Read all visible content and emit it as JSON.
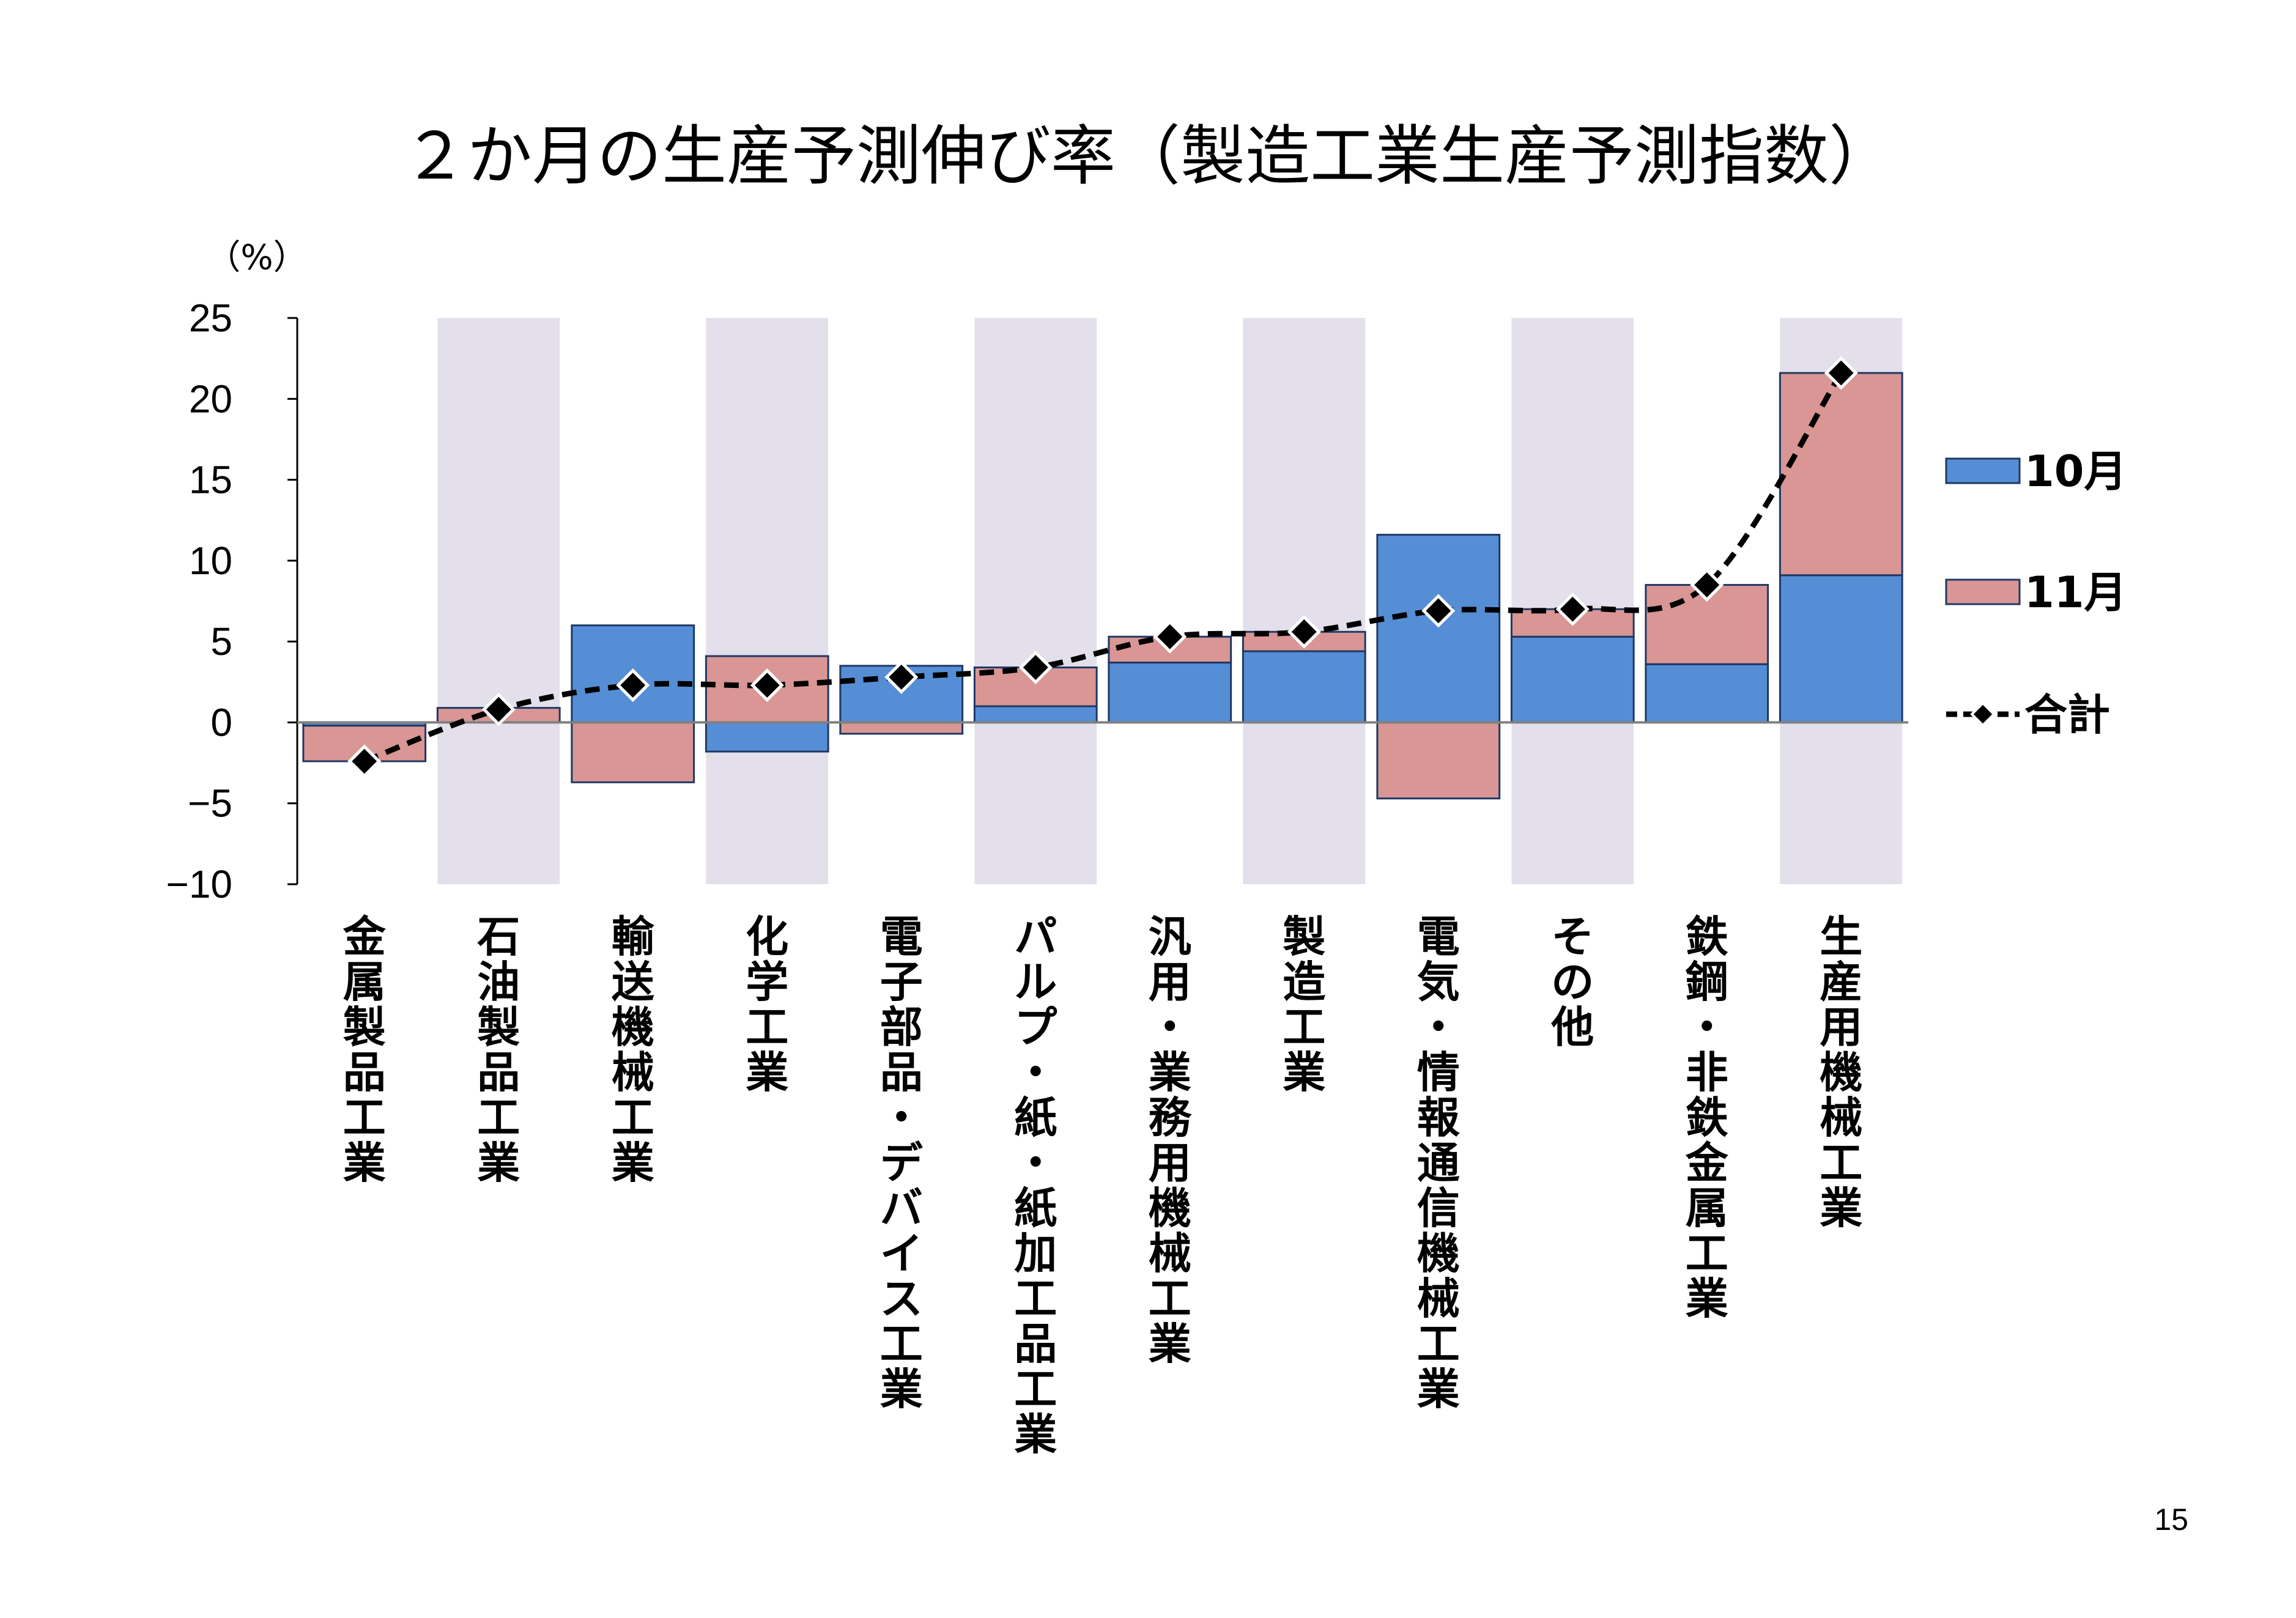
{
  "page_number": "15",
  "colors": {
    "band": "#e3dfeb",
    "oct": "#558ed5",
    "nov": "#d99694",
    "border": "#1f3864",
    "line": "#000000",
    "marker_stroke": "#ffffff"
  },
  "chart_data": {
    "type": "bar",
    "stacked": true,
    "title": "２か月の生産予測伸び率（製造工業生産予測指数）",
    "ylabel": "（%）",
    "ylim": [
      -10,
      25
    ],
    "yticks": [
      25,
      20,
      15,
      10,
      5,
      0,
      -5,
      -10
    ],
    "ytick_labels": [
      "25",
      "20",
      "15",
      "10",
      "5",
      "0",
      "−5",
      "−10"
    ],
    "categories": [
      "金属製品工業",
      "石油製品工業",
      "輸送機械工業",
      "化学工業",
      "電子部品・デバイス工業",
      "パルプ・紙・紙加工品工業",
      "汎用・業務用機械工業",
      "製造工業",
      "電気・情報通信機械工業",
      "その他",
      "鉄鋼・非鉄金属工業",
      "生産用機械工業"
    ],
    "series": [
      {
        "name": "10月",
        "type": "bar",
        "values": [
          -0.2,
          0.0,
          6.0,
          -1.8,
          3.5,
          1.0,
          3.7,
          4.4,
          11.6,
          5.3,
          3.6,
          9.1
        ]
      },
      {
        "name": "11月",
        "type": "bar",
        "values": [
          -2.2,
          0.9,
          -3.7,
          4.1,
          -0.7,
          2.4,
          1.6,
          1.2,
          -4.7,
          1.7,
          4.9,
          12.5
        ]
      },
      {
        "name": "合計",
        "type": "line",
        "style": "dashed",
        "marker": "diamond",
        "values": [
          -2.4,
          0.8,
          2.3,
          2.3,
          2.8,
          3.4,
          5.3,
          5.6,
          6.9,
          7.0,
          8.5,
          21.6
        ]
      }
    ],
    "shaded_categories": [
      1,
      3,
      5,
      7,
      9,
      11
    ],
    "grid": false,
    "legend_position": "right"
  }
}
